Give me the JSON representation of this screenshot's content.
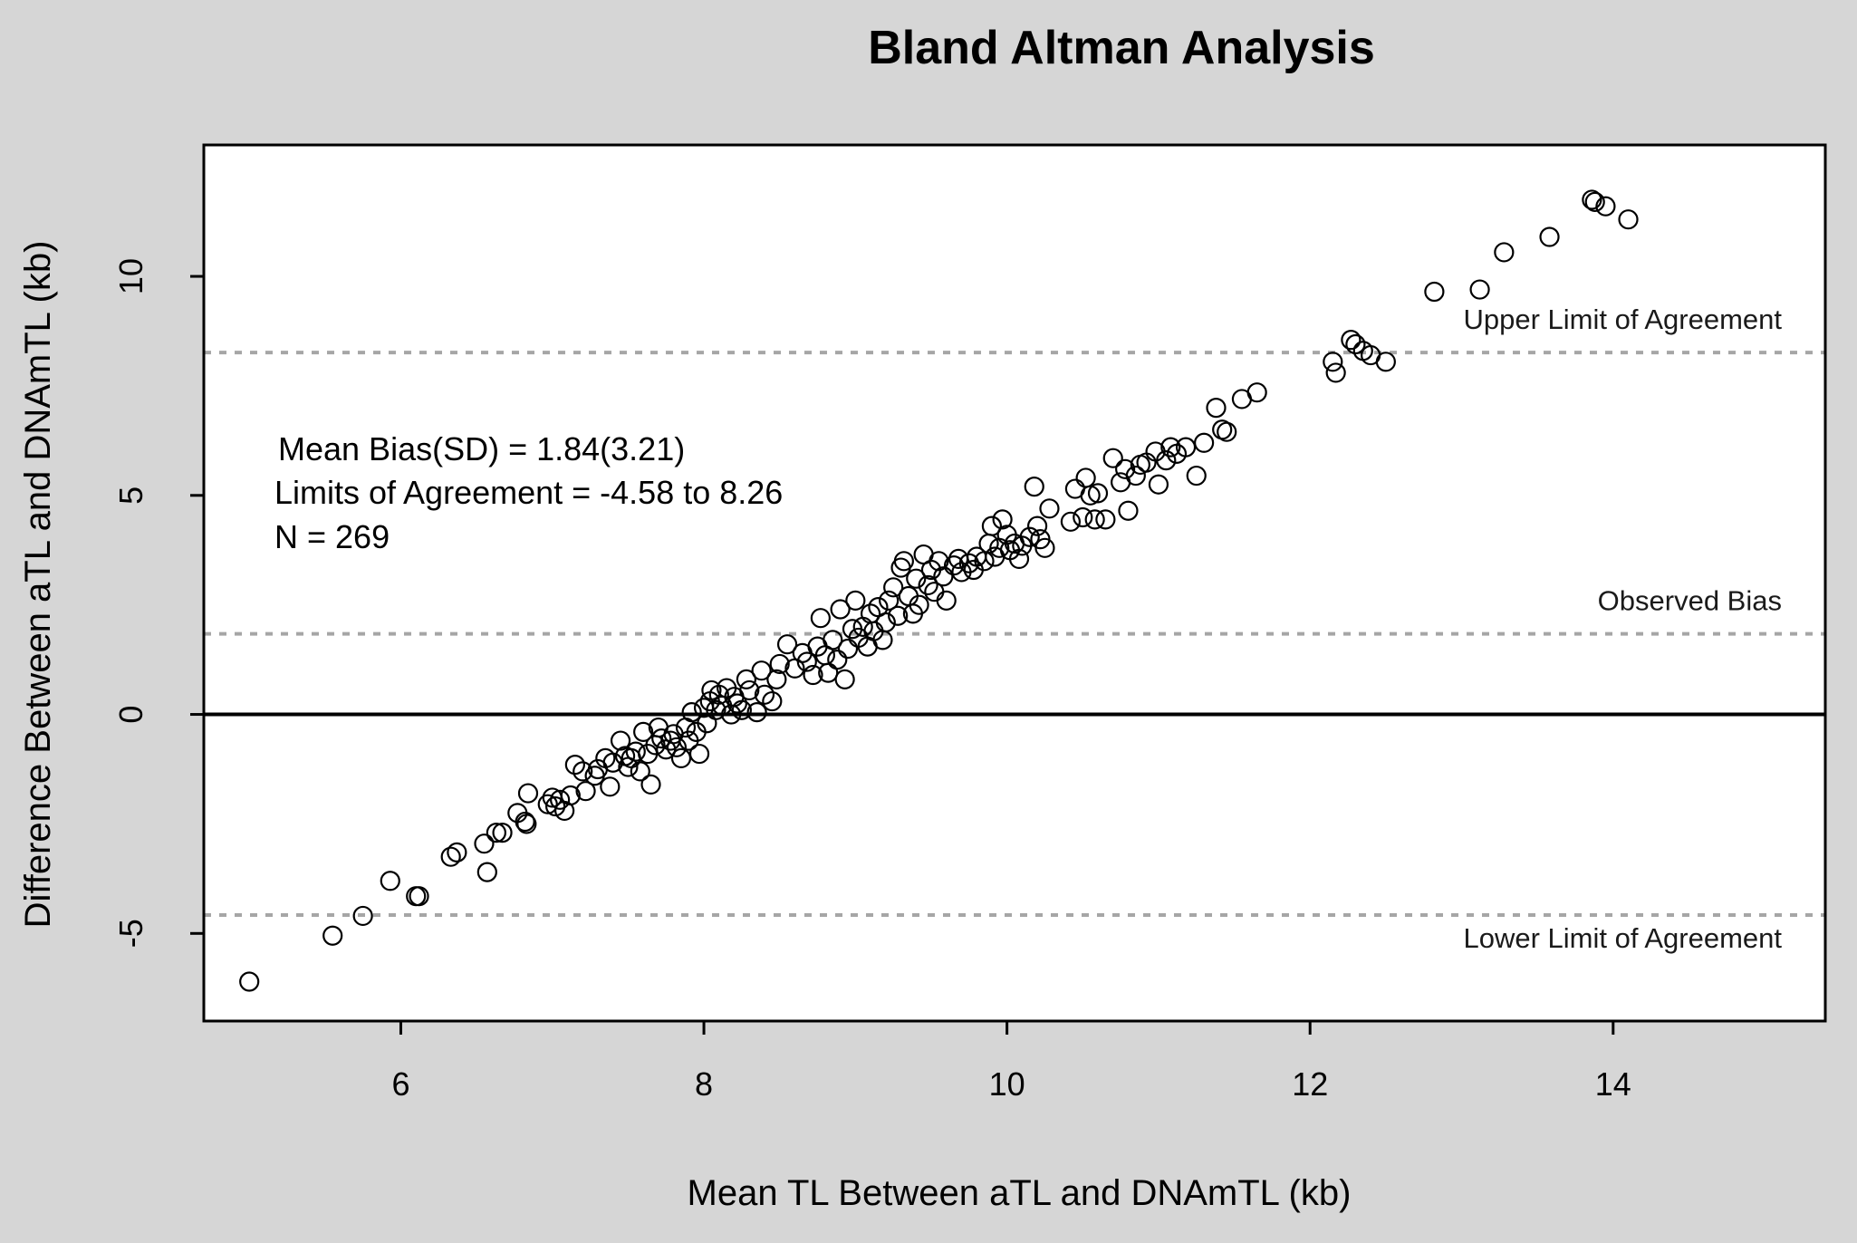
{
  "chart_data": {
    "type": "scatter",
    "title": "Bland Altman Analysis",
    "xlabel": "Mean TL Between aTL and DNAmTL (kb)",
    "ylabel": "Difference Between aTL and DNAmTL (kb)",
    "xlim": [
      4.7,
      15.4
    ],
    "ylim": [
      -7.0,
      13.0
    ],
    "x_ticks": [
      "6",
      "8",
      "10",
      "12",
      "14"
    ],
    "y_ticks": [
      "-5",
      "0",
      "5",
      "10"
    ],
    "grid": false,
    "annotations": [
      "Mean Bias(SD) = 1.84(3.21)",
      "Limits of Agreement = -4.58 to 8.26",
      "N = 269"
    ],
    "reference_lines": [
      {
        "label": "Upper Limit of Agreement",
        "y": 8.26,
        "style": "dotted"
      },
      {
        "label": "Observed Bias",
        "y": 1.84,
        "style": "dotted"
      },
      {
        "label": "Lower Limit of Agreement",
        "y": -4.58,
        "style": "dotted"
      },
      {
        "label": "",
        "y": 0,
        "style": "solid"
      }
    ],
    "points": [
      [
        5.0,
        -6.1
      ],
      [
        5.55,
        -5.05
      ],
      [
        5.75,
        -4.6
      ],
      [
        5.93,
        -3.8
      ],
      [
        6.1,
        -4.15
      ],
      [
        6.12,
        -4.15
      ],
      [
        6.33,
        -3.25
      ],
      [
        6.37,
        -3.15
      ],
      [
        6.55,
        -2.95
      ],
      [
        6.57,
        -3.6
      ],
      [
        6.63,
        -2.7
      ],
      [
        6.67,
        -2.7
      ],
      [
        6.77,
        -2.25
      ],
      [
        6.82,
        -2.45
      ],
      [
        6.83,
        -2.5
      ],
      [
        6.84,
        -1.8
      ],
      [
        6.97,
        -2.05
      ],
      [
        7.0,
        -1.9
      ],
      [
        7.02,
        -2.1
      ],
      [
        7.05,
        -1.95
      ],
      [
        7.08,
        -2.2
      ],
      [
        7.12,
        -1.85
      ],
      [
        7.15,
        -1.15
      ],
      [
        7.2,
        -1.3
      ],
      [
        7.22,
        -1.75
      ],
      [
        7.28,
        -1.4
      ],
      [
        7.3,
        -1.25
      ],
      [
        7.35,
        -1.0
      ],
      [
        7.38,
        -1.65
      ],
      [
        7.4,
        -1.1
      ],
      [
        7.45,
        -0.6
      ],
      [
        7.48,
        -0.95
      ],
      [
        7.5,
        -1.2
      ],
      [
        7.52,
        -1.0
      ],
      [
        7.55,
        -0.85
      ],
      [
        7.58,
        -1.3
      ],
      [
        7.6,
        -0.4
      ],
      [
        7.63,
        -0.9
      ],
      [
        7.65,
        -1.6
      ],
      [
        7.68,
        -0.7
      ],
      [
        7.7,
        -0.3
      ],
      [
        7.72,
        -0.55
      ],
      [
        7.75,
        -0.8
      ],
      [
        7.78,
        -0.6
      ],
      [
        7.8,
        -0.45
      ],
      [
        7.82,
        -0.75
      ],
      [
        7.85,
        -1.0
      ],
      [
        7.88,
        -0.3
      ],
      [
        7.9,
        -0.6
      ],
      [
        7.92,
        0.05
      ],
      [
        7.95,
        -0.4
      ],
      [
        7.97,
        -0.9
      ],
      [
        8.0,
        0.15
      ],
      [
        8.02,
        -0.2
      ],
      [
        8.04,
        0.3
      ],
      [
        8.05,
        0.55
      ],
      [
        8.08,
        0.1
      ],
      [
        8.1,
        0.45
      ],
      [
        8.12,
        0.2
      ],
      [
        8.15,
        0.6
      ],
      [
        8.18,
        0.0
      ],
      [
        8.2,
        0.4
      ],
      [
        8.22,
        0.25
      ],
      [
        8.25,
        0.1
      ],
      [
        8.28,
        0.8
      ],
      [
        8.3,
        0.55
      ],
      [
        8.35,
        0.05
      ],
      [
        8.38,
        1.0
      ],
      [
        8.4,
        0.45
      ],
      [
        8.45,
        0.3
      ],
      [
        8.48,
        0.8
      ],
      [
        8.5,
        1.15
      ],
      [
        8.55,
        1.6
      ],
      [
        8.6,
        1.05
      ],
      [
        8.65,
        1.4
      ],
      [
        8.68,
        1.2
      ],
      [
        8.72,
        0.9
      ],
      [
        8.75,
        1.55
      ],
      [
        8.77,
        2.2
      ],
      [
        8.8,
        1.35
      ],
      [
        8.82,
        0.95
      ],
      [
        8.85,
        1.7
      ],
      [
        8.88,
        1.25
      ],
      [
        8.9,
        2.4
      ],
      [
        8.93,
        0.8
      ],
      [
        8.95,
        1.5
      ],
      [
        8.98,
        1.95
      ],
      [
        9.0,
        2.6
      ],
      [
        9.02,
        1.75
      ],
      [
        9.05,
        2.0
      ],
      [
        9.08,
        1.55
      ],
      [
        9.1,
        2.3
      ],
      [
        9.12,
        1.9
      ],
      [
        9.15,
        2.45
      ],
      [
        9.18,
        1.7
      ],
      [
        9.2,
        2.1
      ],
      [
        9.22,
        2.6
      ],
      [
        9.25,
        2.9
      ],
      [
        9.28,
        2.25
      ],
      [
        9.3,
        3.35
      ],
      [
        9.32,
        3.5
      ],
      [
        9.35,
        2.7
      ],
      [
        9.38,
        2.3
      ],
      [
        9.4,
        3.1
      ],
      [
        9.42,
        2.5
      ],
      [
        9.45,
        3.65
      ],
      [
        9.48,
        2.95
      ],
      [
        9.5,
        3.3
      ],
      [
        9.52,
        2.8
      ],
      [
        9.55,
        3.5
      ],
      [
        9.58,
        3.15
      ],
      [
        9.6,
        2.6
      ],
      [
        9.65,
        3.4
      ],
      [
        9.68,
        3.55
      ],
      [
        9.7,
        3.25
      ],
      [
        9.75,
        3.45
      ],
      [
        9.78,
        3.3
      ],
      [
        9.8,
        3.6
      ],
      [
        9.85,
        3.5
      ],
      [
        9.88,
        3.9
      ],
      [
        9.9,
        4.3
      ],
      [
        9.92,
        3.6
      ],
      [
        9.95,
        3.8
      ],
      [
        9.97,
        4.45
      ],
      [
        10.0,
        4.1
      ],
      [
        10.02,
        3.75
      ],
      [
        10.05,
        3.9
      ],
      [
        10.08,
        3.55
      ],
      [
        10.1,
        3.85
      ],
      [
        10.15,
        4.05
      ],
      [
        10.18,
        5.2
      ],
      [
        10.2,
        4.3
      ],
      [
        10.22,
        4.0
      ],
      [
        10.25,
        3.8
      ],
      [
        10.28,
        4.7
      ],
      [
        10.42,
        4.4
      ],
      [
        10.45,
        5.15
      ],
      [
        10.5,
        4.5
      ],
      [
        10.52,
        5.4
      ],
      [
        10.55,
        5.0
      ],
      [
        10.58,
        4.45
      ],
      [
        10.6,
        5.05
      ],
      [
        10.65,
        4.45
      ],
      [
        10.7,
        5.85
      ],
      [
        10.75,
        5.3
      ],
      [
        10.78,
        5.6
      ],
      [
        10.8,
        4.65
      ],
      [
        10.85,
        5.45
      ],
      [
        10.88,
        5.7
      ],
      [
        10.92,
        5.75
      ],
      [
        10.98,
        6.0
      ],
      [
        11.0,
        5.25
      ],
      [
        11.05,
        5.8
      ],
      [
        11.08,
        6.1
      ],
      [
        11.12,
        5.95
      ],
      [
        11.18,
        6.1
      ],
      [
        11.25,
        5.45
      ],
      [
        11.3,
        6.2
      ],
      [
        11.38,
        7.0
      ],
      [
        11.42,
        6.5
      ],
      [
        11.45,
        6.45
      ],
      [
        11.55,
        7.2
      ],
      [
        11.65,
        7.35
      ],
      [
        12.15,
        8.05
      ],
      [
        12.17,
        7.8
      ],
      [
        12.27,
        8.55
      ],
      [
        12.3,
        8.45
      ],
      [
        12.35,
        8.3
      ],
      [
        12.4,
        8.2
      ],
      [
        12.5,
        8.05
      ],
      [
        12.82,
        9.65
      ],
      [
        13.12,
        9.7
      ],
      [
        13.28,
        10.55
      ],
      [
        13.58,
        10.9
      ],
      [
        13.86,
        11.75
      ],
      [
        13.88,
        11.7
      ],
      [
        13.95,
        11.6
      ],
      [
        14.1,
        11.3
      ]
    ]
  }
}
